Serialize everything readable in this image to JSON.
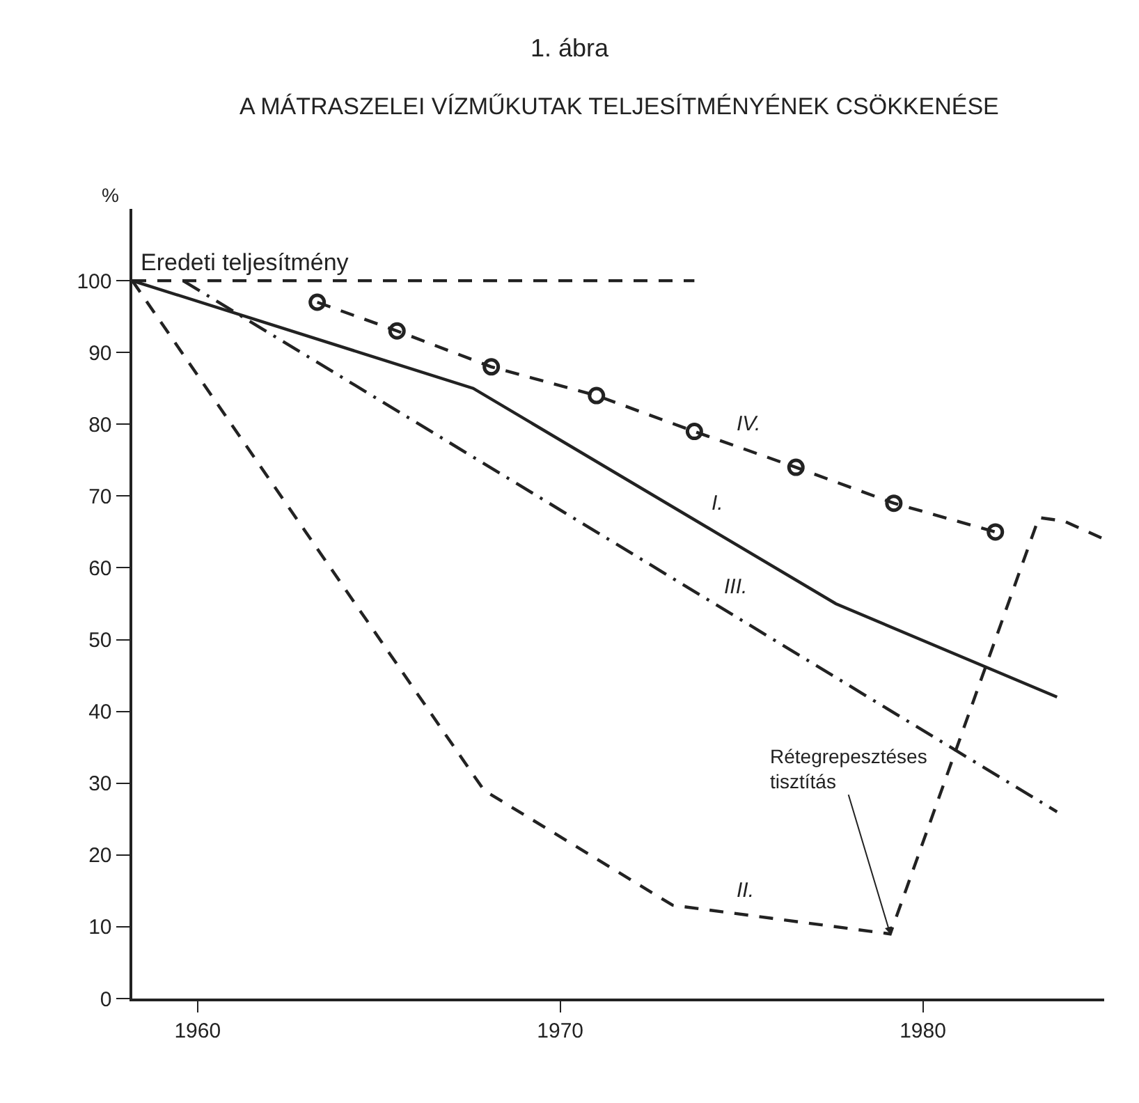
{
  "chart_data": {
    "type": "line",
    "title": "1. ábra",
    "subtitle": "A MÁTRASZELEI VÍZMŰKUTAK TELJESÍTMÉNYÉNEK CSÖKKENÉSE",
    "ylabel": "%",
    "series": [
      {
        "name": "Eredeti teljesítmény",
        "color": "#222222",
        "line_style": "dashed",
        "marker": "none",
        "x": [
          1958.2,
          1973.7
        ],
        "values": [
          100,
          100
        ]
      },
      {
        "name": "I.",
        "color": "#222222",
        "line_style": "solid",
        "marker": "none",
        "x": [
          1958.2,
          1967.6,
          1977.6,
          1983.7
        ],
        "values": [
          100,
          85,
          55,
          42
        ]
      },
      {
        "name": "II.",
        "color": "#222222",
        "line_style": "dashed",
        "marker": "none",
        "x": [
          1958.2,
          1967.9,
          1973.1,
          1979.1,
          1983.2,
          1983.9,
          1985
        ],
        "values": [
          100,
          29,
          13,
          9,
          67,
          66.5,
          64
        ]
      },
      {
        "name": "III.",
        "color": "#222222",
        "line_style": "dashdot",
        "marker": "none",
        "x": [
          1959.6,
          1983.7
        ],
        "values": [
          100,
          26
        ]
      },
      {
        "name": "IV.",
        "color": "#222222",
        "line_style": "dashed",
        "marker": "circle",
        "x": [
          1963.3,
          1965.5,
          1968.1,
          1971.0,
          1973.7,
          1976.5,
          1979.2,
          1982.0
        ],
        "values": [
          97,
          93,
          88,
          84,
          79,
          74,
          69,
          65
        ]
      }
    ],
    "annotations": [
      {
        "text": "Rétegrepesztéses tisztítás",
        "x": 1979.1,
        "y": 9
      }
    ],
    "xlim": [
      1958.2,
      1985
    ],
    "xticks": [
      1960,
      1970,
      1980
    ],
    "ylim": [
      0,
      110
    ],
    "yticks": [
      0,
      10,
      20,
      30,
      40,
      50,
      60,
      70,
      80,
      90,
      100
    ],
    "grid": false,
    "legend": false
  }
}
